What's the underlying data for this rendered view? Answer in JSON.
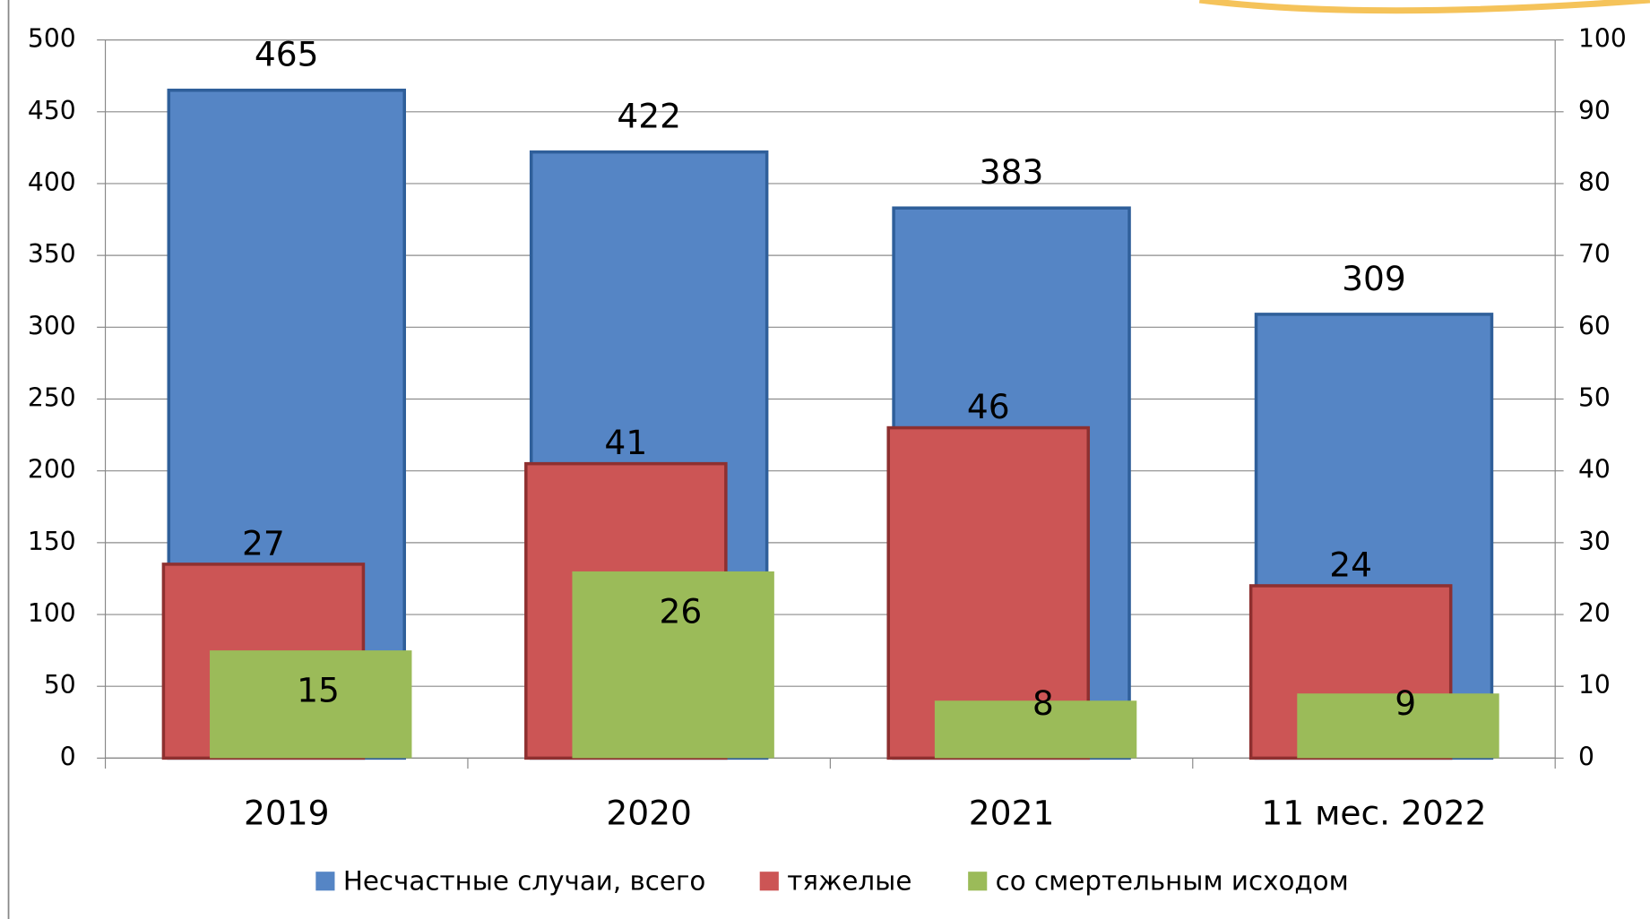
{
  "chart_data": {
    "type": "bar",
    "categories": [
      "2019",
      "2020",
      "2021",
      "11 мес. 2022"
    ],
    "series": [
      {
        "name": "Несчастные случаи, всего",
        "color": "#5585c5",
        "values": [
          465,
          422,
          383,
          309
        ]
      },
      {
        "name": "тяжелые",
        "color": "#cc5555",
        "values": [
          27,
          41,
          46,
          24
        ],
        "axis": "y2"
      },
      {
        "name": "со смертельным исходом",
        "color": "#9bbb59",
        "values": [
          15,
          26,
          8,
          9
        ],
        "axis": "y2"
      }
    ],
    "ylim": [
      0,
      500
    ],
    "yticks": [
      0,
      50,
      100,
      150,
      200,
      250,
      300,
      350,
      400,
      450,
      500
    ],
    "y2lim": [
      0,
      100
    ],
    "y2ticks": [
      0,
      10,
      20,
      30,
      40,
      50,
      60,
      70,
      80,
      90,
      100
    ],
    "grid": true,
    "legend": "bottom"
  }
}
